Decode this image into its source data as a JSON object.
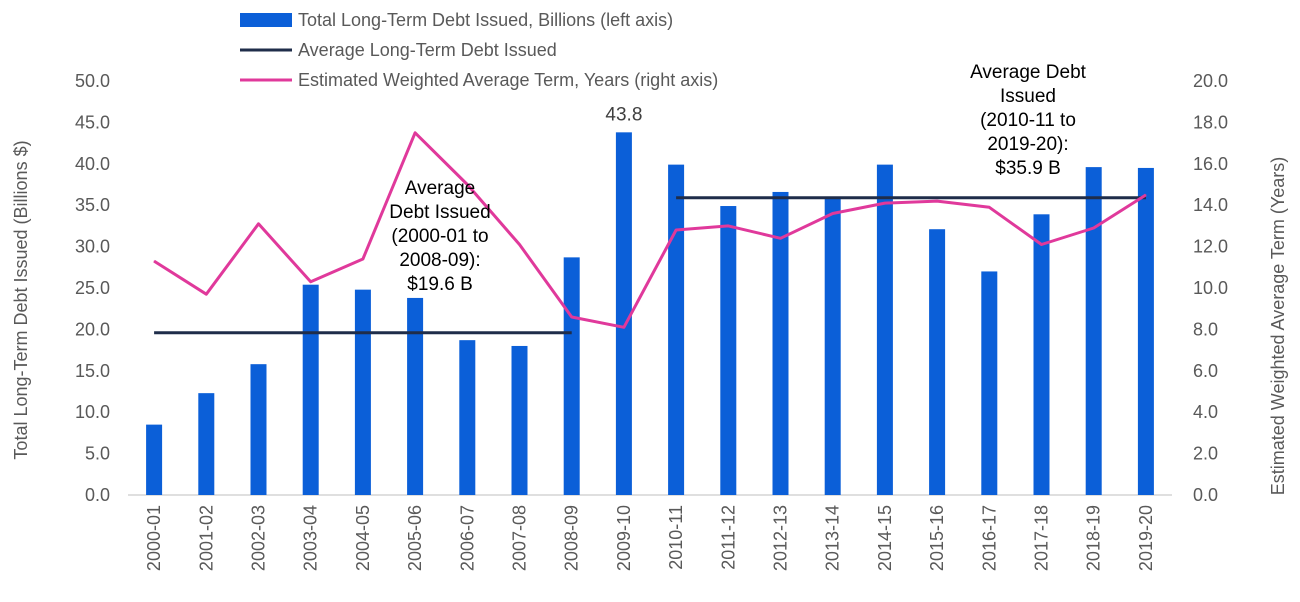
{
  "chart_data": {
    "type": "bar",
    "categories": [
      "2000-01",
      "2001-02",
      "2002-03",
      "2003-04",
      "2004-05",
      "2005-06",
      "2006-07",
      "2007-08",
      "2008-09",
      "2009-10",
      "2010-11",
      "2011-12",
      "2012-13",
      "2013-14",
      "2014-15",
      "2015-16",
      "2016-17",
      "2017-18",
      "2018-19",
      "2019-20"
    ],
    "series": [
      {
        "name": "Total Long-Term Debt Issued, Billions (left axis)",
        "type": "bar",
        "axis": "left",
        "color": "#0b5fd8",
        "values": [
          8.5,
          12.3,
          15.8,
          25.4,
          24.8,
          23.8,
          18.7,
          18.0,
          28.7,
          43.8,
          39.9,
          34.9,
          36.6,
          36.0,
          39.9,
          32.1,
          27.0,
          33.9,
          39.6,
          39.5
        ]
      },
      {
        "name": "Average Long-Term Debt Issued",
        "type": "line",
        "axis": "left",
        "color": "#1f2d4a",
        "segments": [
          {
            "from": "2000-01",
            "to": "2008-09",
            "value": 19.6
          },
          {
            "from": "2010-11",
            "to": "2019-20",
            "value": 35.9
          }
        ]
      },
      {
        "name": "Estimated Weighted Average Term, Years (right axis)",
        "type": "line",
        "axis": "right",
        "color": "#e0399b",
        "values": [
          11.3,
          9.7,
          13.1,
          10.3,
          11.4,
          17.5,
          15.0,
          12.1,
          8.6,
          8.1,
          12.8,
          13.0,
          12.4,
          13.6,
          14.1,
          14.2,
          13.9,
          12.1,
          12.9,
          14.5
        ]
      }
    ],
    "ylabel": "Total Long-Term Debt Issued (Billions $)",
    "y2label": "Estimated Weighted Average Term (Years)",
    "ylim": [
      0,
      50
    ],
    "y2lim": [
      0,
      20
    ],
    "yticks": [
      "0.0",
      "5.0",
      "10.0",
      "15.0",
      "20.0",
      "25.0",
      "30.0",
      "35.0",
      "40.0",
      "45.0",
      "50.0"
    ],
    "y2ticks": [
      "0.0",
      "2.0",
      "4.0",
      "6.0",
      "8.0",
      "10.0",
      "12.0",
      "14.0",
      "16.0",
      "18.0",
      "20.0"
    ],
    "grid": false,
    "legend_position": "top",
    "data_labels": [
      {
        "category": "2009-10",
        "text": "43.8"
      }
    ],
    "annotations": [
      {
        "lines": [
          "Average",
          "Debt Issued",
          "(2000-01 to",
          "2008-09):",
          "$19.6 B"
        ]
      },
      {
        "lines": [
          "Average Debt",
          "Issued",
          "(2010-11 to",
          "2019-20):",
          "$35.9 B"
        ]
      }
    ]
  }
}
